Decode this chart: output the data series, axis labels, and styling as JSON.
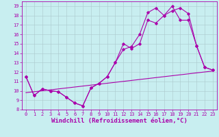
{
  "xlabel": "Windchill (Refroidissement éolien,°C)",
  "background_color": "#c8eef0",
  "line_color": "#aa00aa",
  "xlim": [
    -0.5,
    23.5
  ],
  "ylim": [
    8,
    19.5
  ],
  "yticks": [
    8,
    9,
    10,
    11,
    12,
    13,
    14,
    15,
    16,
    17,
    18,
    19
  ],
  "xticks": [
    0,
    1,
    2,
    3,
    4,
    5,
    6,
    7,
    8,
    9,
    10,
    11,
    12,
    13,
    14,
    15,
    16,
    17,
    18,
    19,
    20,
    21,
    22,
    23
  ],
  "series1_x": [
    0,
    1,
    2,
    3,
    4,
    5,
    6,
    7,
    8,
    9,
    10,
    11,
    12,
    13,
    14,
    15,
    16,
    17,
    18,
    19,
    20,
    21,
    22,
    23
  ],
  "series1_y": [
    11.5,
    9.5,
    10.2,
    10.0,
    9.9,
    9.3,
    8.7,
    8.4,
    10.3,
    10.8,
    11.5,
    13.0,
    15.0,
    14.5,
    15.0,
    17.5,
    17.2,
    18.0,
    18.5,
    18.8,
    18.2,
    14.8,
    12.5,
    12.2
  ],
  "series2_x": [
    0,
    1,
    2,
    3,
    4,
    5,
    6,
    7,
    8,
    9,
    10,
    11,
    12,
    13,
    14,
    15,
    16,
    17,
    18,
    19,
    20,
    21,
    22,
    23
  ],
  "series2_y": [
    11.5,
    9.5,
    10.2,
    10.0,
    9.9,
    9.3,
    8.7,
    8.4,
    10.3,
    10.8,
    11.5,
    13.0,
    14.4,
    14.7,
    16.0,
    18.3,
    18.8,
    18.0,
    19.0,
    17.5,
    17.5,
    14.8,
    12.5,
    12.2
  ],
  "series3_x": [
    0,
    23
  ],
  "series3_y": [
    9.8,
    12.1
  ],
  "grid_color": "#aac8cc",
  "tick_fontsize": 5.0,
  "xlabel_fontsize": 6.5
}
